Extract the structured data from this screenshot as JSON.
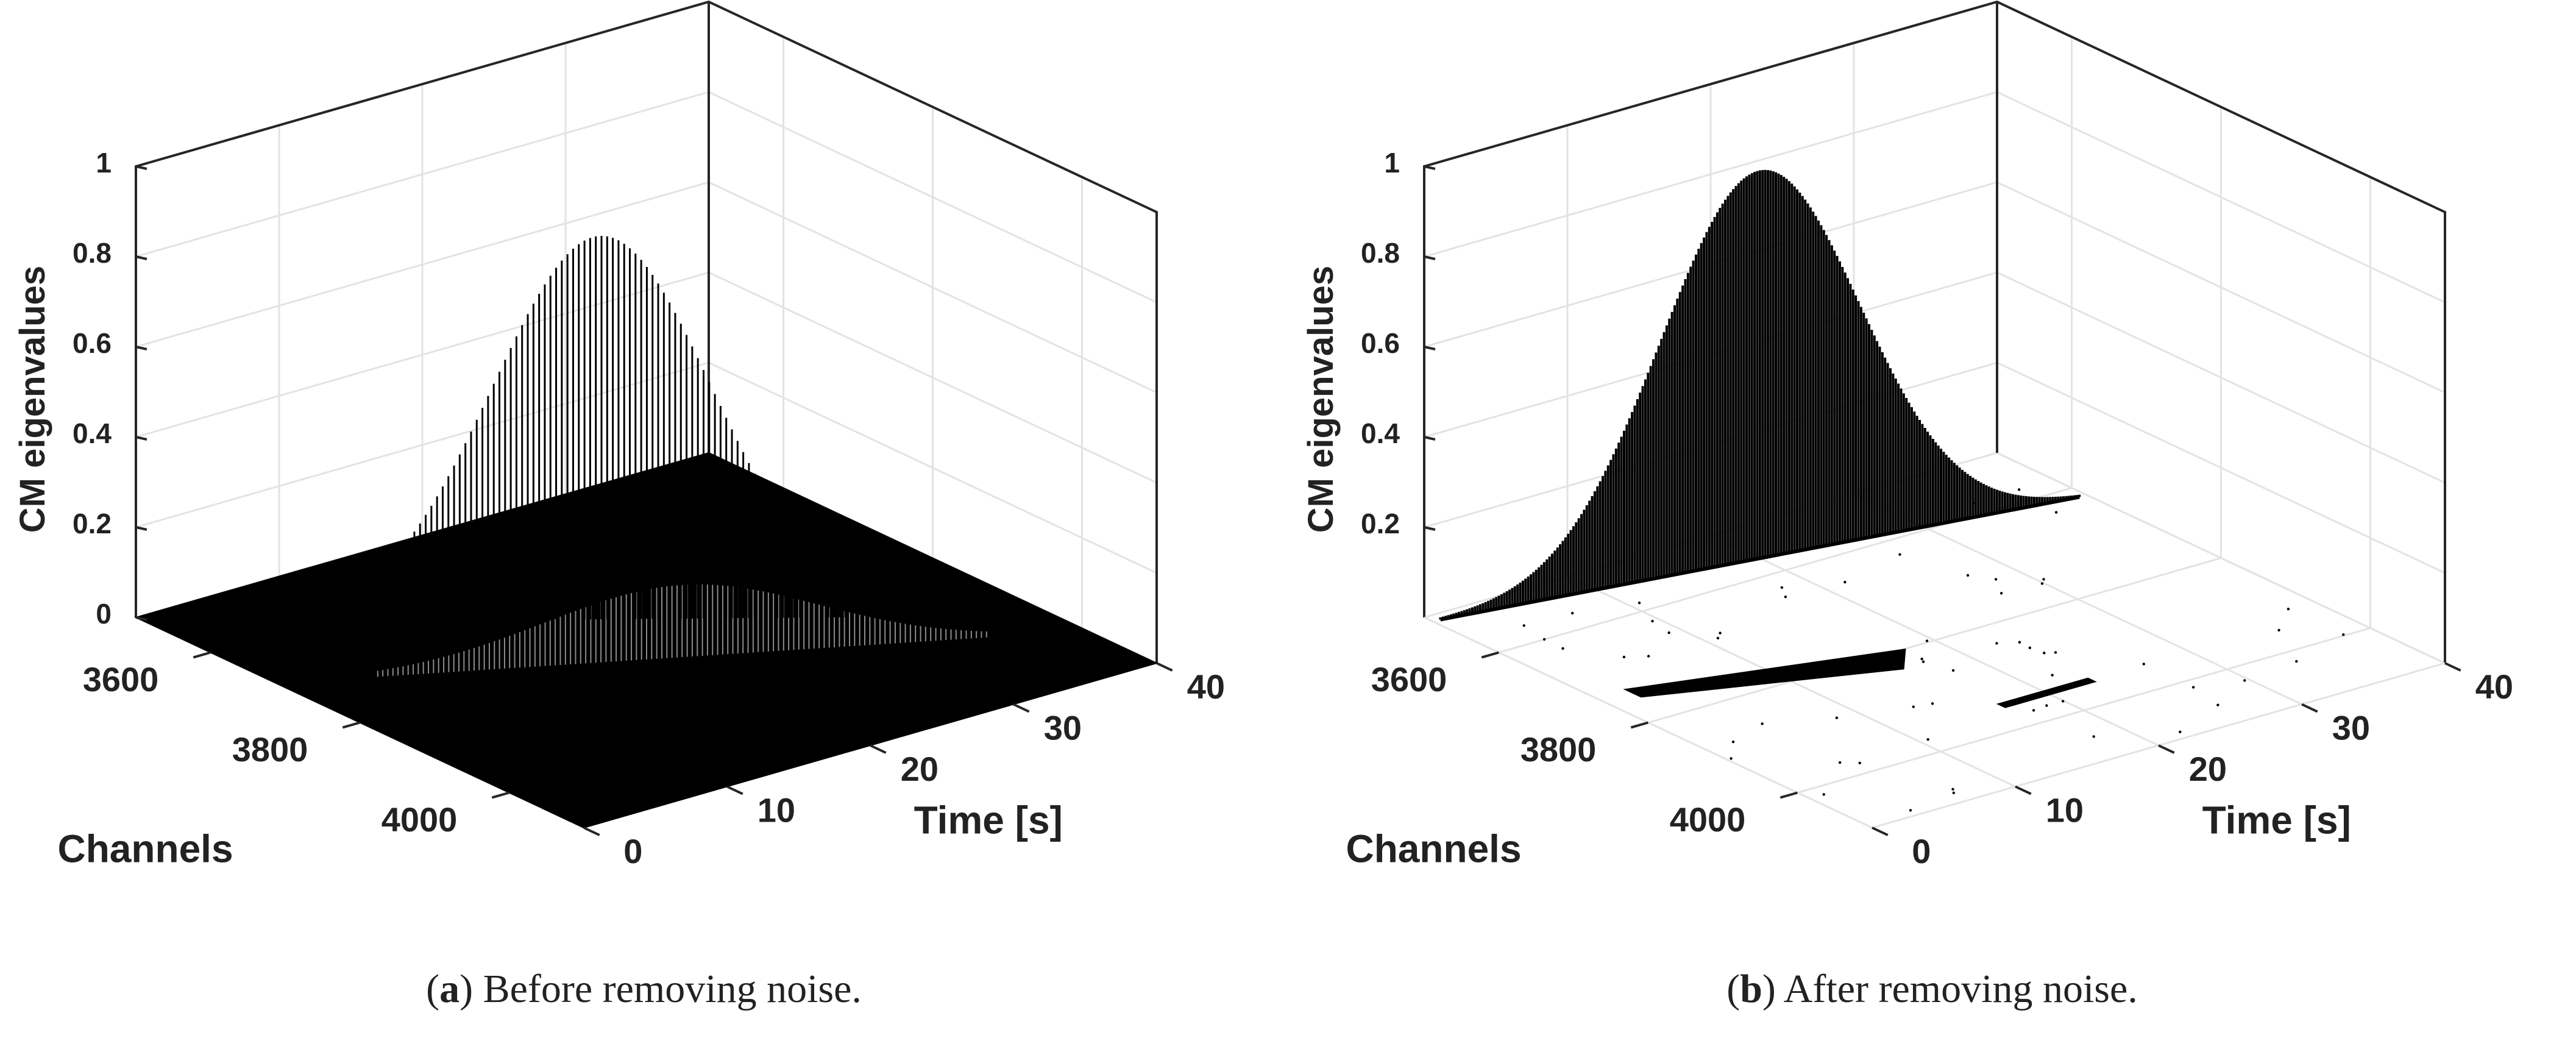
{
  "chart_data": [
    {
      "type": "surface3d",
      "panel_id": "a",
      "zlabel": "CM eigenvalues",
      "xlabel": "Time [s]",
      "ylabel": "Channels",
      "z_ticks": [
        "0",
        "0.2",
        "0.4",
        "0.6",
        "0.8",
        "1"
      ],
      "time_ticks": [
        "0",
        "10",
        "20",
        "30",
        "40"
      ],
      "channel_ticks": [
        "3600",
        "3800",
        "4000"
      ],
      "zlim": [
        0,
        1
      ],
      "time_range": [
        0,
        40
      ],
      "channel_range": [
        3500,
        4100
      ],
      "peak_value": 0.85,
      "secondary_peak_value": 0.16,
      "noise_floor": "filled",
      "caption_letter": "a",
      "caption_text": "Before removing noise."
    },
    {
      "type": "surface3d",
      "panel_id": "b",
      "zlabel": "CM eigenvalues",
      "xlabel": "Time [s]",
      "ylabel": "Channels",
      "z_ticks": [
        "0.2",
        "0.4",
        "0.6",
        "0.8",
        "1"
      ],
      "time_ticks": [
        "0",
        "10",
        "20",
        "30",
        "40"
      ],
      "channel_ticks": [
        "3600",
        "3800",
        "4000"
      ],
      "zlim": [
        0,
        1
      ],
      "time_range": [
        0,
        40
      ],
      "channel_range": [
        3500,
        4100
      ],
      "peak_value": 0.86,
      "secondary_peak_value": 0.0,
      "noise_floor": "removed",
      "caption_letter": "b",
      "caption_text": "After removing noise."
    }
  ]
}
